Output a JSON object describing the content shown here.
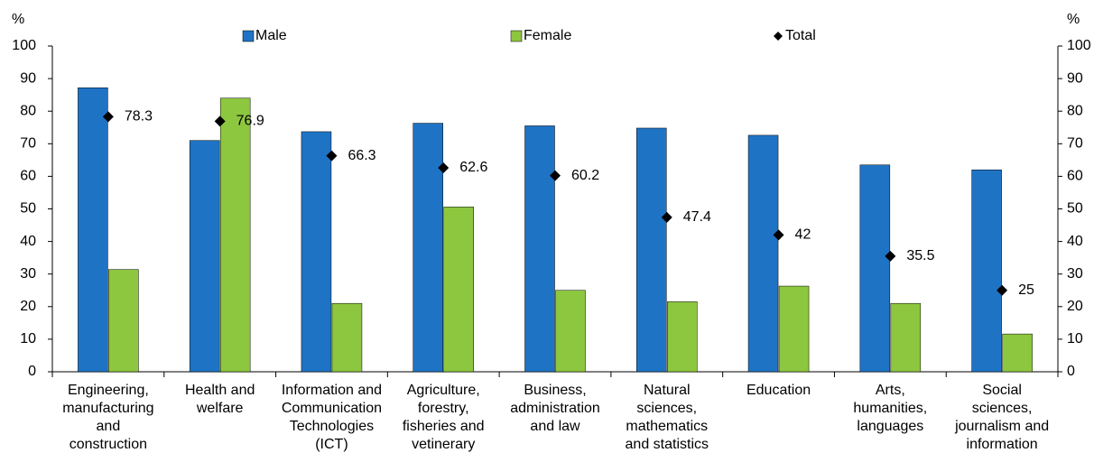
{
  "chart_data": {
    "type": "bar",
    "y_label": "%",
    "y2_label": "%",
    "categories": [
      [
        "Engineering,",
        "manufacturing",
        "and",
        "construction"
      ],
      [
        "Health and",
        "welfare"
      ],
      [
        "Information and",
        "Communication",
        "Technologies",
        "(ICT)"
      ],
      [
        "Agriculture,",
        "forestry,",
        "fisheries and",
        "vetinerary"
      ],
      [
        "Business,",
        "administration",
        "and law"
      ],
      [
        "Natural",
        "sciences,",
        "mathematics",
        "and statistics"
      ],
      [
        "Education"
      ],
      [
        "Arts,",
        "humanities,",
        "languages"
      ],
      [
        "Social",
        "sciences,",
        "journalism and",
        "information"
      ]
    ],
    "series": [
      {
        "name": "Male",
        "type": "bar",
        "color": "#1f73c4",
        "values": [
          87.2,
          71,
          73.7,
          76.3,
          75.5,
          74.8,
          72.6,
          63.5,
          62
        ]
      },
      {
        "name": "Female",
        "type": "bar",
        "color": "#8dc63f",
        "values": [
          31.4,
          84,
          21,
          50.6,
          25,
          21.5,
          26.3,
          21,
          11.6
        ]
      },
      {
        "name": "Total",
        "type": "scatter",
        "color": "#000000",
        "values": [
          78.3,
          76.9,
          66.3,
          62.6,
          60.2,
          47.4,
          42,
          35.5,
          25
        ]
      }
    ],
    "ylim": [
      0,
      100
    ],
    "yticks": [
      0,
      10,
      20,
      30,
      40,
      50,
      60,
      70,
      80,
      90,
      100
    ],
    "y2lim": [
      0,
      100
    ],
    "y2ticks": [
      0,
      10,
      20,
      30,
      40,
      50,
      60,
      70,
      80,
      90,
      100
    ],
    "grid": false
  }
}
